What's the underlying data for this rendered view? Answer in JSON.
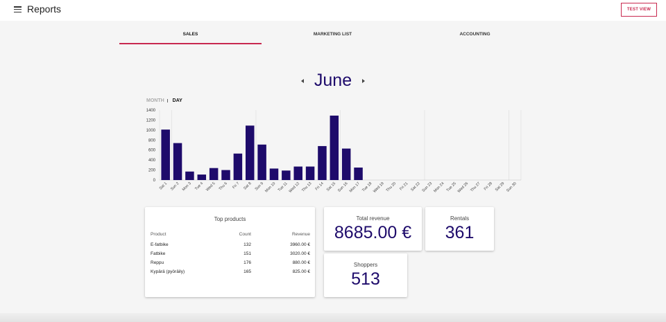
{
  "appbar": {
    "title": "Reports",
    "test_view_label": "TEST VIEW"
  },
  "tabs": [
    {
      "label": "SALES",
      "active": true
    },
    {
      "label": "MARKETING LIST",
      "active": false
    },
    {
      "label": "ACCOUNTING",
      "active": false
    }
  ],
  "month_nav": {
    "title": "June"
  },
  "view_toggle": {
    "month_label": "MONTH",
    "day_label": "DAY",
    "selected": "DAY"
  },
  "colors": {
    "accent": "#c8284f",
    "bar": "#1e0b6b",
    "value_text": "#1e0b6b"
  },
  "chart_data": {
    "type": "bar",
    "categories": [
      "Sat 1",
      "Sun 2",
      "Mon 3",
      "Tue 4",
      "Wed 5",
      "Thu 6",
      "Fri 7",
      "Sat 8",
      "Sun 9",
      "Mon 10",
      "Tue 11",
      "Wed 12",
      "Thu 13",
      "Fri 14",
      "Sat 15",
      "Sun 16",
      "Mon 17",
      "Tue 18",
      "Wed 19",
      "Thu 20",
      "Fri 21",
      "Sat 22",
      "Sun 23",
      "Mon 24",
      "Tue 25",
      "Wed 26",
      "Thu 27",
      "Fri 28",
      "Sat 29",
      "Sun 30"
    ],
    "values": [
      1010,
      740,
      170,
      110,
      240,
      200,
      530,
      1090,
      710,
      230,
      190,
      270,
      270,
      680,
      1290,
      630,
      250,
      0,
      0,
      0,
      0,
      0,
      0,
      0,
      0,
      0,
      0,
      0,
      0,
      0
    ],
    "yticks": [
      0,
      200,
      400,
      600,
      800,
      1000,
      1200,
      1400
    ],
    "ylim": [
      0,
      1400
    ],
    "grid": "vertical lines at week boundaries",
    "title": "",
    "xlabel": "",
    "ylabel": ""
  },
  "top_products": {
    "title": "Top products",
    "headers": {
      "product": "Product",
      "count": "Count",
      "revenue": "Revenue"
    },
    "rows": [
      {
        "product": "E-fatbike",
        "count": "132",
        "revenue": "3960.00 €"
      },
      {
        "product": "Fatbike",
        "count": "151",
        "revenue": "3020.00 €"
      },
      {
        "product": "Reppu",
        "count": "176",
        "revenue": "880.00 €"
      },
      {
        "product": "Kypärä (pyöräily)",
        "count": "165",
        "revenue": "825.00 €"
      }
    ]
  },
  "stats": {
    "revenue": {
      "label": "Total revenue",
      "value": "8685.00 €"
    },
    "rentals": {
      "label": "Rentals",
      "value": "361"
    },
    "shoppers": {
      "label": "Shoppers",
      "value": "513"
    }
  }
}
